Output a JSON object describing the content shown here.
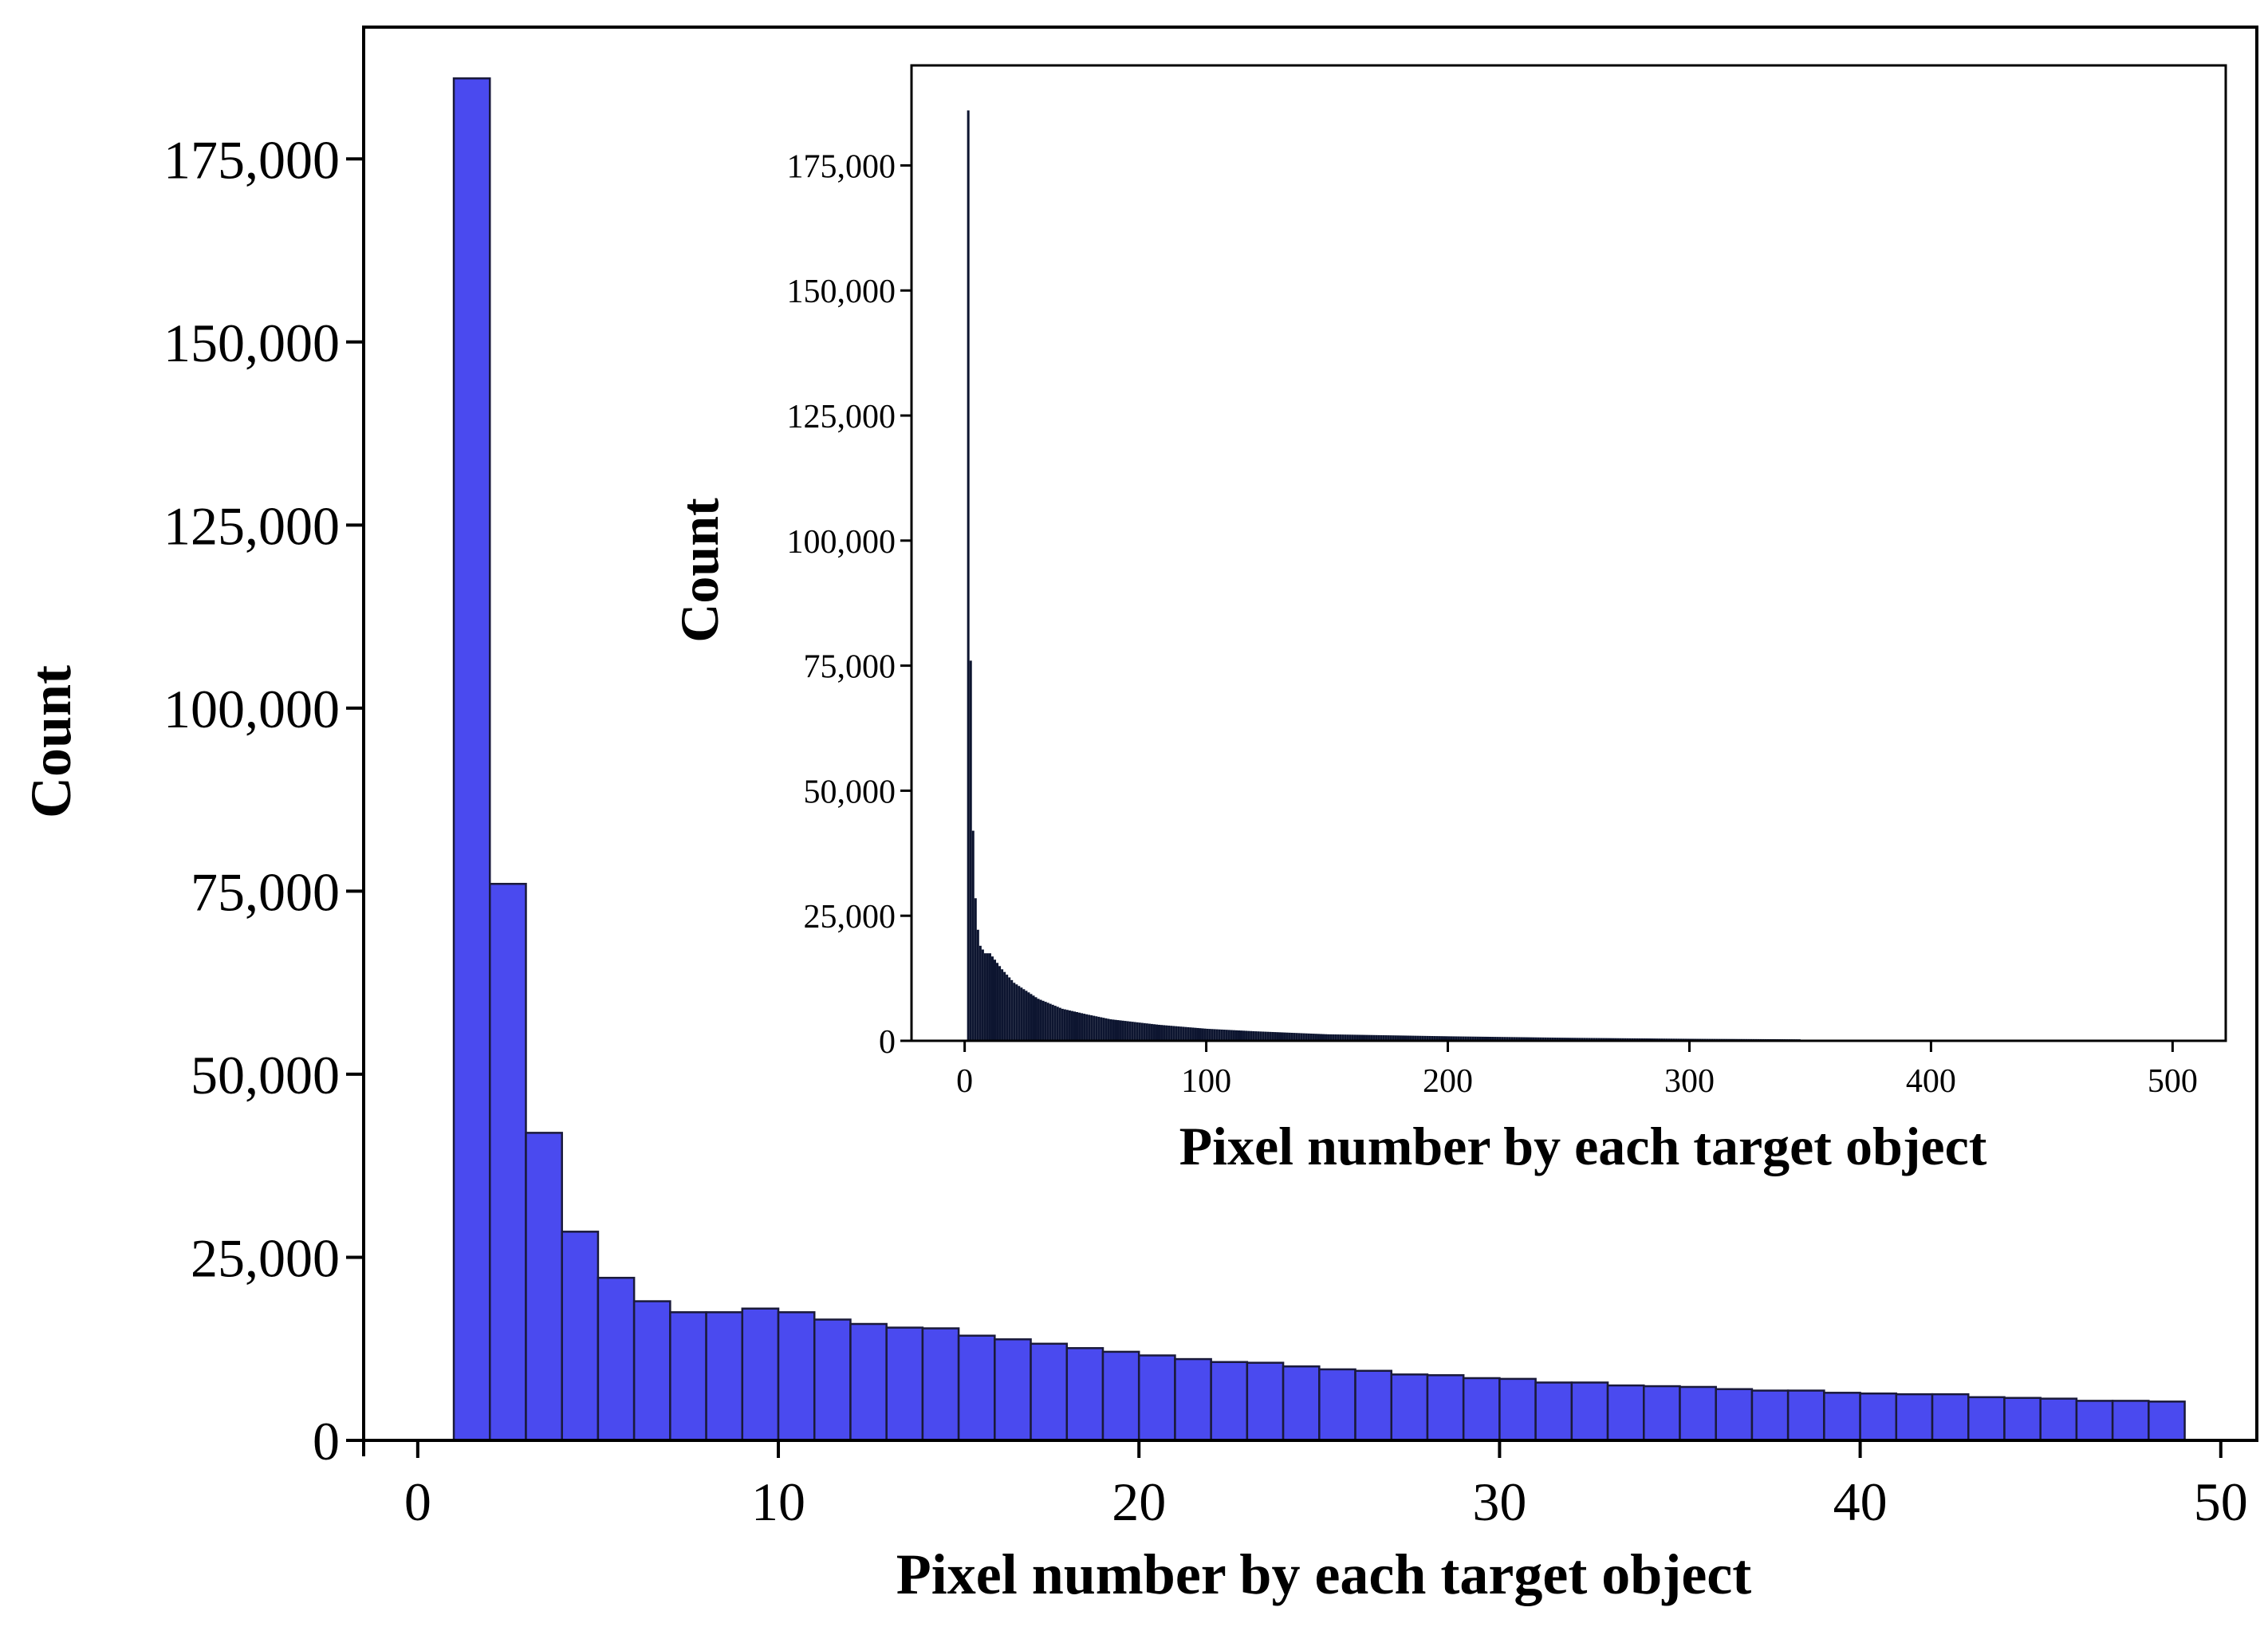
{
  "chart_data": [
    {
      "id": "main",
      "type": "bar",
      "subtype": "histogram",
      "xlabel": "Pixel number by each target object",
      "ylabel": "Count",
      "xlim": [
        -1.5,
        51
      ],
      "ylim": [
        0,
        193000
      ],
      "x_ticks": [
        0,
        10,
        20,
        30,
        40,
        50
      ],
      "x_tick_labels": [
        "0",
        "10",
        "20",
        "30",
        "40",
        "50"
      ],
      "y_ticks": [
        0,
        25000,
        50000,
        75000,
        100000,
        125000,
        150000,
        175000
      ],
      "y_tick_labels": [
        "0",
        "25,000",
        "50,000",
        "75,000",
        "100,000",
        "125,000",
        "150,000",
        "175,000"
      ],
      "grid": false,
      "bar_color": "#4a4aef",
      "edge_color": "#1a1a3a",
      "bin_width": 1,
      "bins_start": [
        1,
        2,
        3,
        4,
        5,
        6,
        7,
        8,
        9,
        10,
        11,
        12,
        13,
        14,
        15,
        16,
        17,
        18,
        19,
        20,
        21,
        22,
        23,
        24,
        25,
        26,
        27,
        28,
        29,
        30,
        31,
        32,
        33,
        34,
        35,
        36,
        37,
        38,
        39,
        40,
        41,
        42,
        43,
        44,
        45,
        46,
        47,
        48
      ],
      "values": [
        186000,
        76000,
        42000,
        28500,
        22200,
        19000,
        17500,
        17500,
        18000,
        17500,
        16500,
        15900,
        15400,
        15300,
        14300,
        13800,
        13200,
        12600,
        12100,
        11600,
        11100,
        10700,
        10600,
        10100,
        9700,
        9500,
        9000,
        8900,
        8500,
        8400,
        7900,
        7900,
        7500,
        7400,
        7300,
        7000,
        6800,
        6800,
        6500,
        6400,
        6300,
        6300,
        5900,
        5800,
        5700,
        5400,
        5400,
        5300
      ]
    },
    {
      "id": "inset",
      "type": "bar",
      "subtype": "histogram",
      "xlabel": "Pixel number by each target object",
      "ylabel": "Count",
      "xlim": [
        -22,
        522
      ],
      "ylim": [
        0,
        195000
      ],
      "x_ticks": [
        0,
        100,
        200,
        300,
        400,
        500
      ],
      "x_tick_labels": [
        "0",
        "100",
        "200",
        "300",
        "400",
        "500"
      ],
      "y_ticks": [
        0,
        25000,
        50000,
        75000,
        100000,
        125000,
        150000,
        175000
      ],
      "y_tick_labels": [
        "0",
        "25,000",
        "50,000",
        "75,000",
        "100,000",
        "125,000",
        "150,000",
        "175,000"
      ],
      "grid": false,
      "bar_color": "#0d1530",
      "bin_width": 1,
      "distribution_points": [
        [
          1,
          186000
        ],
        [
          2,
          76000
        ],
        [
          3,
          42000
        ],
        [
          4,
          28500
        ],
        [
          5,
          22200
        ],
        [
          6,
          19000
        ],
        [
          8,
          17500
        ],
        [
          10,
          17500
        ],
        [
          15,
          14300
        ],
        [
          20,
          11600
        ],
        [
          30,
          8400
        ],
        [
          40,
          6400
        ],
        [
          50,
          5300
        ],
        [
          60,
          4300
        ],
        [
          80,
          3200
        ],
        [
          100,
          2400
        ],
        [
          120,
          1900
        ],
        [
          150,
          1300
        ],
        [
          200,
          900
        ],
        [
          250,
          600
        ],
        [
          300,
          400
        ],
        [
          345,
          300
        ]
      ],
      "last_bin": 345
    }
  ]
}
